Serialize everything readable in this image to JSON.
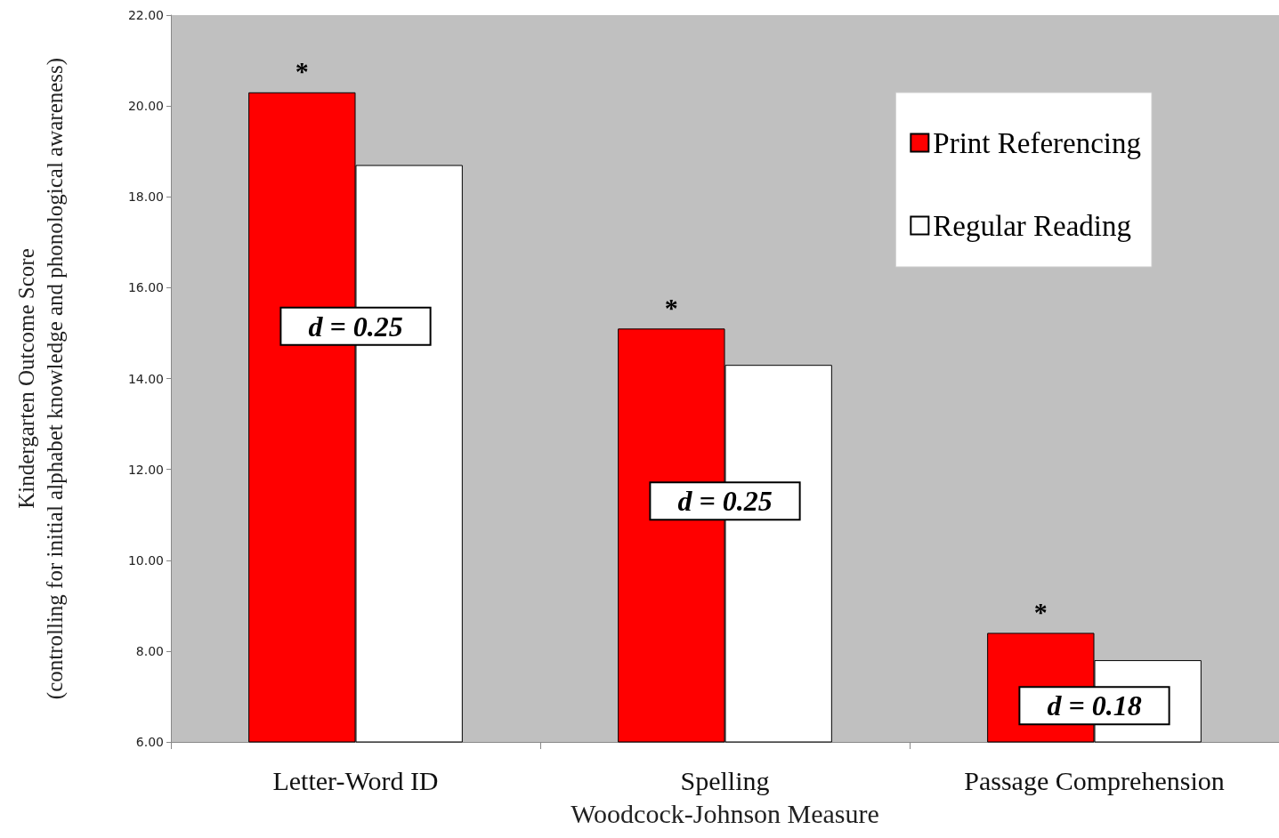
{
  "chart_data": {
    "type": "bar",
    "xlabel": "Woodcock-Johnson Measure",
    "ylabel": "Kindergarten Outcome Score\n(controlling for initial alphabet knowledge and phonological awareness)",
    "categories": [
      "Letter-Word ID",
      "Spelling",
      "Passage Comprehension"
    ],
    "series": [
      {
        "name": "Print Referencing",
        "color": "#ff0000",
        "values": [
          20.3,
          15.1,
          8.4
        ]
      },
      {
        "name": "Regular Reading",
        "color": "#ffffff",
        "values": [
          18.7,
          14.3,
          7.8
        ]
      }
    ],
    "ylim": [
      6,
      22
    ],
    "yticks": [
      {
        "value": 6,
        "label": "6.00"
      },
      {
        "value": 8,
        "label": "8.00"
      },
      {
        "value": 10,
        "label": "10.00"
      },
      {
        "value": 12,
        "label": "12.00"
      },
      {
        "value": 14,
        "label": "14.00"
      },
      {
        "value": 16,
        "label": "16.00"
      },
      {
        "value": 18,
        "label": "18.00"
      },
      {
        "value": 20,
        "label": "20.00"
      },
      {
        "value": 22,
        "label": "22.00"
      }
    ],
    "grid": false,
    "legend": "top right",
    "annotations": [
      "*",
      {
        "text": "d = 0.25",
        "x": "Letter-Word ID",
        "y": 15.15
      },
      "*",
      {
        "text": "d = 0.25",
        "x": "Spelling",
        "y": 11.3
      },
      "*",
      {
        "text": "d = 0.18",
        "x": "Passage Comprehension",
        "y": 6.8
      }
    ]
  }
}
